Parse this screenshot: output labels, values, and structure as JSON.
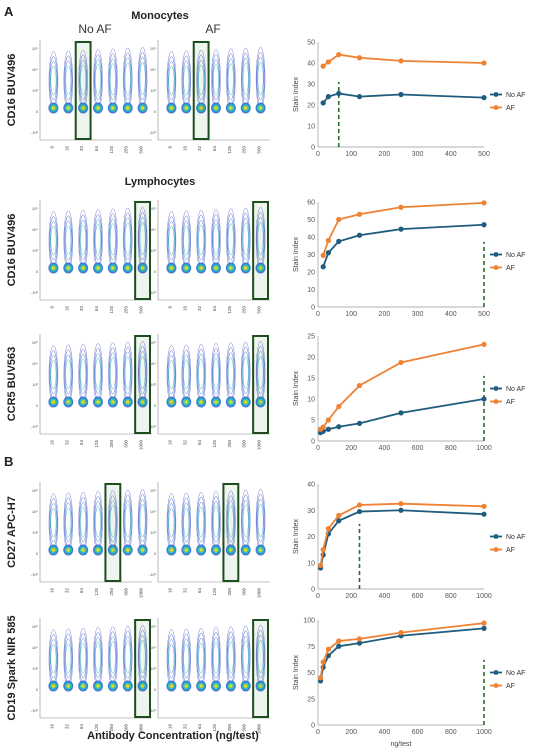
{
  "labels": {
    "panel_a": "A",
    "panel_b": "B",
    "monocytes": "Monocytes",
    "lymphocytes": "Lymphocytes",
    "no_af": "No AF",
    "af": "AF",
    "x_axis": "Antibody Concentration (ng/test)"
  },
  "colors": {
    "no_af": "#1f5c7e",
    "af": "#ef8233",
    "highlight_box": "#1e4d1e",
    "dashed": "#2a6a2a"
  },
  "rows": [
    {
      "marker": "CD16 BUV496",
      "conc_ticks": [
        "8",
        "16",
        "32",
        "64",
        "125",
        "250",
        "500"
      ],
      "highlight_index": 2,
      "cytometry_y_ticks": [
        "10⁵",
        "10⁴",
        "10³",
        "0",
        "-10³"
      ],
      "chart_data": {
        "type": "line",
        "ylabel": "Stain Index",
        "xlabel": "",
        "xlim": [
          0,
          500
        ],
        "ylim": [
          0,
          50
        ],
        "xticks": [
          0,
          100,
          200,
          300,
          400,
          500
        ],
        "yticks": [
          0,
          10,
          20,
          30,
          40,
          50
        ],
        "legend": "right",
        "dashed_x": 62.5,
        "series": [
          {
            "name": "No AF",
            "x": [
              15.6,
              31.25,
              62.5,
              125,
              250,
              500
            ],
            "y": [
              21,
              24,
              25.5,
              24,
              25,
              23.5
            ]
          },
          {
            "name": "AF",
            "x": [
              15.6,
              31.25,
              62.5,
              125,
              250,
              500
            ],
            "y": [
              38.5,
              40.5,
              44,
              42.5,
              41,
              40
            ]
          }
        ]
      }
    },
    {
      "marker": "CD16 BUV496",
      "conc_ticks": [
        "8",
        "16",
        "32",
        "64",
        "125",
        "250",
        "500"
      ],
      "highlight_index": 6,
      "cytometry_y_ticks": [
        "10⁵",
        "10⁴",
        "10³",
        "0",
        "-10³"
      ],
      "chart_data": {
        "type": "line",
        "ylabel": "Stain Index",
        "xlabel": "",
        "xlim": [
          0,
          500
        ],
        "ylim": [
          0,
          60
        ],
        "xticks": [
          0,
          100,
          200,
          300,
          400,
          500
        ],
        "yticks": [
          0,
          10,
          20,
          30,
          40,
          50,
          60
        ],
        "legend": "right",
        "dashed_x": 500,
        "series": [
          {
            "name": "No AF",
            "x": [
              15.6,
              31.25,
              62.5,
              125,
              250,
              500
            ],
            "y": [
              23,
              31,
              37.5,
              41,
              44.5,
              47
            ]
          },
          {
            "name": "AF",
            "x": [
              15.6,
              31.25,
              62.5,
              125,
              250,
              500
            ],
            "y": [
              29.5,
              38,
              50,
              53,
              57,
              59.5
            ]
          }
        ]
      }
    },
    {
      "marker": "CCR5 BUV563",
      "conc_ticks": [
        "16",
        "32",
        "64",
        "125",
        "250",
        "500",
        "1000"
      ],
      "highlight_index": 6,
      "cytometry_y_ticks": [
        "10⁵",
        "10⁴",
        "10³",
        "0",
        "-10³"
      ],
      "chart_data": {
        "type": "line",
        "ylabel": "Stain Index",
        "xlabel": "",
        "xlim": [
          0,
          1000
        ],
        "ylim": [
          0,
          25
        ],
        "xticks": [
          0,
          200,
          400,
          600,
          800,
          1000
        ],
        "yticks": [
          0,
          5,
          10,
          15,
          20,
          25
        ],
        "legend": "right",
        "dashed_x": 1000,
        "series": [
          {
            "name": "No AF",
            "x": [
              15.6,
              31.25,
              62.5,
              125,
              250,
              500,
              1000
            ],
            "y": [
              2,
              2.3,
              2.8,
              3.4,
              4.2,
              6.7,
              10
            ]
          },
          {
            "name": "AF",
            "x": [
              15.6,
              31.25,
              62.5,
              125,
              250,
              500,
              1000
            ],
            "y": [
              2.8,
              3.3,
              5,
              8.2,
              13.2,
              18.7,
              23
            ]
          }
        ]
      }
    },
    {
      "marker": "CD27 APC-H7",
      "conc_ticks": [
        "16",
        "32",
        "64",
        "125",
        "250",
        "500",
        "1000"
      ],
      "highlight_index": 4,
      "cytometry_y_ticks": [
        "10⁵",
        "10⁴",
        "10³",
        "0",
        "-10³"
      ],
      "chart_data": {
        "type": "line",
        "ylabel": "Stain Index",
        "xlabel": "",
        "xlim": [
          0,
          1000
        ],
        "ylim": [
          0,
          40
        ],
        "xticks": [
          0,
          200,
          400,
          600,
          800,
          1000
        ],
        "yticks": [
          0,
          10,
          20,
          30,
          40
        ],
        "legend": "right",
        "dashed_x": 250,
        "series": [
          {
            "name": "No AF",
            "x": [
              15.6,
              31.25,
              62.5,
              125,
              250,
              500,
              1000
            ],
            "y": [
              8,
              13,
              21,
              26,
              29.5,
              30,
              28.5
            ]
          },
          {
            "name": "AF",
            "x": [
              15.6,
              31.25,
              62.5,
              125,
              250,
              500,
              1000
            ],
            "y": [
              9,
              15,
              23,
              28,
              32,
              32.5,
              31.5
            ]
          }
        ]
      }
    },
    {
      "marker": "CD19 Spark NIR 585",
      "conc_ticks": [
        "16",
        "32",
        "64",
        "125",
        "250",
        "500",
        "1000"
      ],
      "highlight_index": 6,
      "cytometry_y_ticks": [
        "10⁵",
        "10⁴",
        "10³",
        "0",
        "-10³"
      ],
      "chart_data": {
        "type": "line",
        "ylabel": "Stain Index",
        "xlabel": "ng/test",
        "xlim": [
          0,
          1000
        ],
        "ylim": [
          0,
          100
        ],
        "xticks": [
          0,
          200,
          400,
          600,
          800,
          1000
        ],
        "yticks": [
          0,
          25,
          50,
          75,
          100
        ],
        "legend": "right",
        "dashed_x": 1000,
        "series": [
          {
            "name": "No AF",
            "x": [
              15.6,
              31.25,
              62.5,
              125,
              250,
              500,
              1000
            ],
            "y": [
              42,
              55,
              66,
              75,
              78,
              85,
              92
            ]
          },
          {
            "name": "AF",
            "x": [
              15.6,
              31.25,
              62.5,
              125,
              250,
              500,
              1000
            ],
            "y": [
              45,
              60,
              72,
              80,
              82,
              88,
              97
            ]
          }
        ]
      }
    }
  ]
}
